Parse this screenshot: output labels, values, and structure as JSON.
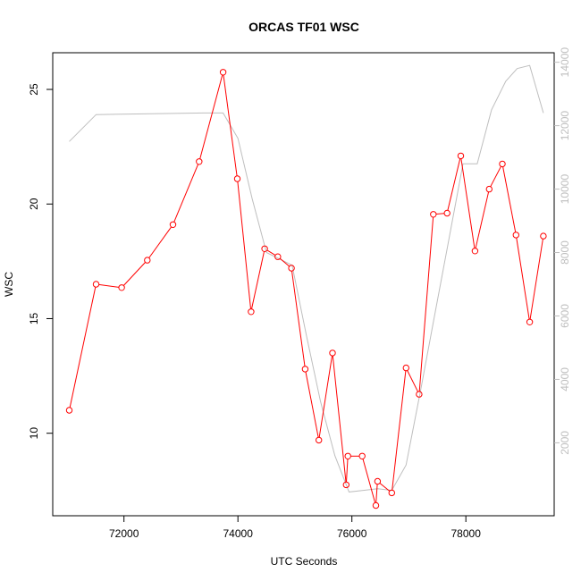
{
  "chart_data": {
    "type": "line",
    "title": "ORCAS TF01 WSC",
    "xlabel": "UTC Seconds",
    "ylabel": "WSC",
    "xlim": [
      70750,
      79550
    ],
    "ylim": [
      6.4,
      26.6
    ],
    "y2lim": [
      -300,
      14300
    ],
    "x_ticks": [
      72000,
      74000,
      76000,
      78000
    ],
    "x_tick_labels": [
      "72000",
      "74000",
      "76000",
      "78000"
    ],
    "y_ticks": [
      10,
      15,
      20,
      25
    ],
    "y_tick_labels": [
      "10",
      "15",
      "20",
      "25"
    ],
    "y2_ticks": [
      2000,
      4000,
      6000,
      8000,
      10000,
      12000,
      14000
    ],
    "y2_tick_labels": [
      "2000",
      "4000",
      "6000",
      "8000",
      "10000",
      "12000",
      "14000"
    ],
    "grid": false,
    "series": [
      {
        "axis": "left",
        "color": "#ff0000",
        "marker": "circle",
        "x": [
          71040,
          71510,
          71960,
          72410,
          72860,
          73320,
          73740,
          73990,
          74230,
          74470,
          74700,
          74940,
          75180,
          75420,
          75660,
          75900,
          75930,
          76180,
          76420,
          76450,
          76700,
          76950,
          77180,
          77430,
          77670,
          77910,
          78160,
          78410,
          78640,
          78880,
          79120,
          79360
        ],
        "y": [
          11.0,
          16.5,
          16.35,
          17.55,
          19.1,
          21.85,
          25.75,
          21.1,
          15.3,
          18.05,
          17.7,
          17.2,
          12.8,
          9.7,
          13.5,
          7.75,
          9.0,
          9.0,
          6.85,
          7.9,
          7.4,
          12.85,
          11.7,
          19.55,
          19.6,
          22.1,
          17.95,
          20.65,
          21.75,
          18.65,
          14.85,
          18.6
        ]
      },
      {
        "axis": "right",
        "color": "#bebebe",
        "marker": "none",
        "x": [
          71040,
          71510,
          73400,
          73740,
          74000,
          74250,
          74500,
          74950,
          75200,
          75450,
          75700,
          75950,
          76200,
          76450,
          76700,
          76950,
          77200,
          77450,
          77700,
          77950,
          78200,
          78450,
          78700,
          78900,
          79120,
          79360
        ],
        "y": [
          11500,
          12350,
          12400,
          12400,
          11600,
          9700,
          8000,
          7600,
          5400,
          3300,
          1600,
          450,
          500,
          550,
          500,
          1300,
          3600,
          6000,
          8400,
          10800,
          10800,
          12500,
          13400,
          13800,
          13900,
          12400
        ]
      }
    ]
  }
}
